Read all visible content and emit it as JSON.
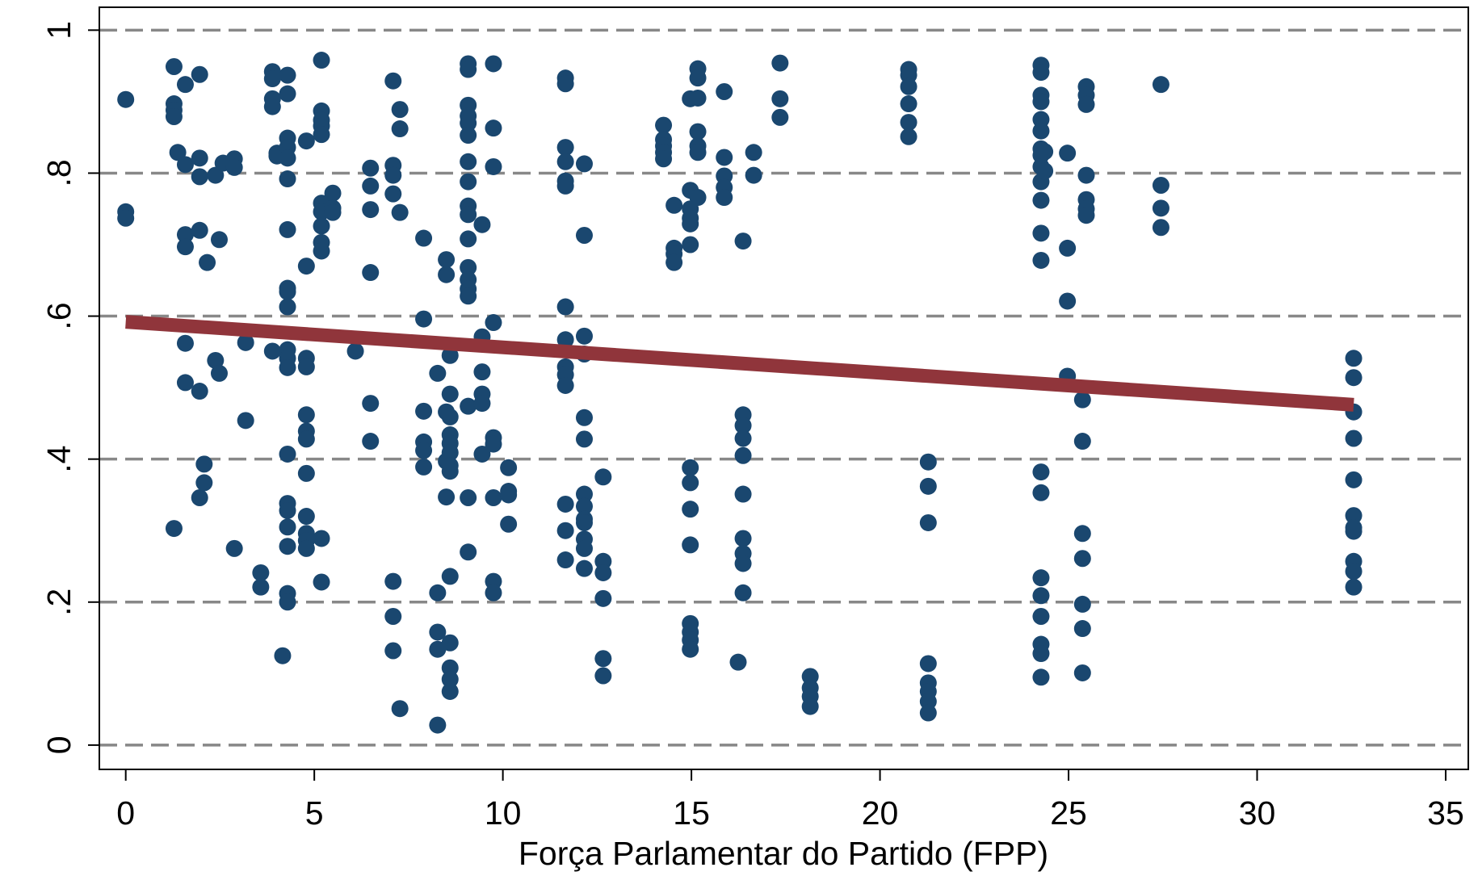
{
  "chart_data": {
    "type": "scatter",
    "xlabel": "Força Parlamentar do Partido (FPP)",
    "xlim": [
      -0.7,
      35.6
    ],
    "ylim": [
      -0.034,
      1.032
    ],
    "xticks": [
      0,
      5,
      10,
      15,
      20,
      25,
      30,
      35
    ],
    "yticks": [
      0,
      {
        "value": 0.2,
        "label": ".2"
      },
      {
        "value": 0.4,
        "label": ".4"
      },
      {
        "value": 0.6,
        "label": ".6"
      },
      {
        "value": 0.8,
        "label": ".8"
      },
      1
    ],
    "grid": true,
    "scatter": {
      "color": "#1a476f",
      "x": [
        0,
        0,
        0,
        1.28,
        1.28,
        1.28,
        1.28,
        1.28,
        1.38,
        1.58,
        1.58,
        1.58,
        1.58,
        1.58,
        1.58,
        1.96,
        1.96,
        1.96,
        1.96,
        1.96,
        1.96,
        2.08,
        2.08,
        2.16,
        2.38,
        2.38,
        2.48,
        2.48,
        2.58,
        2.88,
        2.88,
        2.88,
        3.18,
        3.18,
        3.58,
        3.58,
        3.89,
        3.89,
        3.89,
        3.89,
        3.89,
        4.01,
        4.01,
        4.29,
        4.29,
        4.29,
        4.29,
        4.29,
        4.29,
        4.29,
        4.29,
        4.29,
        4.29,
        4.29,
        4.29,
        4.29,
        4.29,
        4.29,
        4.29,
        4.29,
        4.29,
        4.29,
        4.29,
        4.16,
        4.79,
        4.79,
        4.79,
        4.79,
        4.79,
        4.79,
        4.79,
        4.79,
        4.79,
        4.79,
        4.79,
        4.79,
        5.19,
        5.19,
        5.19,
        5.19,
        5.19,
        5.19,
        5.19,
        5.19,
        5.19,
        5.19,
        5.19,
        5.19,
        5.49,
        5.49,
        5.49,
        6.09,
        6.49,
        6.49,
        6.49,
        6.49,
        6.49,
        6.49,
        7.09,
        7.09,
        7.09,
        7.09,
        7.09,
        7.09,
        7.09,
        7.27,
        7.27,
        7.27,
        7.27,
        7.9,
        7.9,
        7.9,
        7.9,
        7.9,
        7.9,
        8.27,
        8.27,
        8.27,
        8.27,
        8.27,
        8.5,
        8.5,
        8.5,
        8.5,
        8.5,
        8.6,
        8.6,
        8.6,
        8.6,
        8.6,
        8.6,
        8.6,
        8.6,
        8.6,
        8.6,
        8.6,
        8.6,
        8.6,
        9.08,
        9.08,
        9.08,
        9.08,
        9.08,
        9.08,
        9.08,
        9.08,
        9.08,
        9.08,
        9.08,
        9.08,
        9.08,
        9.08,
        9.08,
        9.08,
        9.08,
        9.08,
        9.45,
        9.45,
        9.45,
        9.45,
        9.45,
        9.45,
        9.75,
        9.75,
        9.75,
        9.75,
        9.75,
        9.75,
        9.75,
        9.75,
        9.75,
        10.15,
        10.15,
        10.15,
        10.15,
        11.66,
        11.66,
        11.66,
        11.66,
        11.66,
        11.66,
        11.66,
        11.66,
        11.66,
        11.66,
        11.66,
        11.66,
        11.66,
        11.66,
        12.16,
        12.16,
        12.16,
        12.16,
        12.16,
        12.16,
        12.16,
        12.16,
        12.16,
        12.16,
        12.16,
        12.16,
        12.16,
        12.66,
        12.66,
        12.66,
        12.66,
        12.66,
        12.66,
        14.26,
        14.26,
        14.26,
        14.26,
        14.26,
        14.54,
        14.54,
        14.54,
        14.54,
        14.97,
        14.97,
        14.97,
        14.97,
        14.97,
        14.97,
        14.97,
        14.97,
        14.97,
        14.97,
        14.97,
        14.97,
        14.97,
        14.97,
        15.17,
        15.17,
        15.17,
        15.17,
        15.17,
        15.17,
        15.17,
        15.87,
        15.87,
        15.87,
        15.87,
        15.87,
        16.37,
        16.37,
        16.37,
        16.37,
        16.37,
        16.37,
        16.37,
        16.37,
        16.37,
        16.37,
        16.24,
        16.65,
        16.65,
        17.35,
        17.35,
        17.35,
        18.15,
        18.15,
        18.15,
        18.15,
        20.76,
        20.76,
        20.76,
        20.76,
        20.76,
        20.76,
        21.28,
        21.28,
        21.28,
        21.28,
        21.28,
        21.28,
        21.28,
        21.28,
        24.27,
        24.27,
        24.27,
        24.27,
        24.27,
        24.27,
        24.27,
        24.27,
        24.27,
        24.27,
        24.27,
        24.27,
        24.27,
        24.27,
        24.27,
        24.27,
        24.27,
        24.27,
        24.27,
        24.27,
        24.27,
        24.37,
        24.37,
        24.97,
        24.97,
        24.97,
        24.97,
        25.37,
        25.37,
        25.37,
        25.37,
        25.37,
        25.37,
        25.37,
        25.47,
        25.47,
        25.47,
        25.47,
        25.47,
        25.47,
        25.47,
        27.45,
        27.45,
        27.45,
        27.45,
        32.56,
        32.56,
        32.56,
        32.56,
        32.56,
        32.56,
        32.56,
        32.56,
        32.56,
        32.56,
        32.56
      ],
      "values": [
        0.903,
        0.746,
        0.737,
        0.949,
        0.897,
        0.888,
        0.879,
        0.303,
        0.829,
        0.924,
        0.812,
        0.714,
        0.697,
        0.562,
        0.507,
        0.938,
        0.821,
        0.795,
        0.72,
        0.495,
        0.346,
        0.393,
        0.367,
        0.675,
        0.797,
        0.538,
        0.707,
        0.52,
        0.814,
        0.82,
        0.808,
        0.275,
        0.563,
        0.454,
        0.241,
        0.221,
        0.942,
        0.932,
        0.904,
        0.893,
        0.551,
        0.828,
        0.824,
        0.937,
        0.911,
        0.849,
        0.836,
        0.821,
        0.792,
        0.721,
        0.639,
        0.634,
        0.613,
        0.553,
        0.541,
        0.528,
        0.407,
        0.338,
        0.328,
        0.305,
        0.278,
        0.212,
        0.2,
        0.125,
        0.845,
        0.67,
        0.541,
        0.529,
        0.462,
        0.439,
        0.428,
        0.38,
        0.32,
        0.296,
        0.286,
        0.275,
        0.958,
        0.887,
        0.874,
        0.866,
        0.854,
        0.758,
        0.746,
        0.726,
        0.703,
        0.691,
        0.289,
        0.228,
        0.772,
        0.751,
        0.745,
        0.551,
        0.807,
        0.782,
        0.749,
        0.661,
        0.478,
        0.425,
        0.929,
        0.811,
        0.797,
        0.771,
        0.229,
        0.18,
        0.132,
        0.889,
        0.862,
        0.745,
        0.051,
        0.709,
        0.596,
        0.467,
        0.424,
        0.412,
        0.389,
        0.52,
        0.213,
        0.158,
        0.134,
        0.028,
        0.679,
        0.658,
        0.466,
        0.397,
        0.347,
        0.545,
        0.491,
        0.459,
        0.434,
        0.422,
        0.409,
        0.391,
        0.383,
        0.236,
        0.143,
        0.108,
        0.092,
        0.075,
        0.953,
        0.945,
        0.895,
        0.88,
        0.87,
        0.853,
        0.816,
        0.788,
        0.754,
        0.742,
        0.708,
        0.668,
        0.651,
        0.638,
        0.628,
        0.474,
        0.346,
        0.27,
        0.728,
        0.571,
        0.522,
        0.491,
        0.478,
        0.407,
        0.953,
        0.863,
        0.809,
        0.591,
        0.43,
        0.421,
        0.346,
        0.229,
        0.213,
        0.388,
        0.355,
        0.35,
        0.309,
        0.933,
        0.925,
        0.836,
        0.816,
        0.789,
        0.782,
        0.613,
        0.567,
        0.529,
        0.518,
        0.503,
        0.337,
        0.3,
        0.259,
        0.813,
        0.713,
        0.572,
        0.547,
        0.458,
        0.428,
        0.351,
        0.334,
        0.316,
        0.311,
        0.288,
        0.275,
        0.247,
        0.375,
        0.257,
        0.241,
        0.205,
        0.121,
        0.097,
        0.867,
        0.847,
        0.838,
        0.829,
        0.82,
        0.755,
        0.695,
        0.687,
        0.675,
        0.904,
        0.776,
        0.75,
        0.737,
        0.729,
        0.7,
        0.388,
        0.367,
        0.33,
        0.28,
        0.17,
        0.158,
        0.147,
        0.134,
        0.946,
        0.933,
        0.905,
        0.858,
        0.838,
        0.829,
        0.766,
        0.914,
        0.822,
        0.796,
        0.78,
        0.766,
        0.705,
        0.462,
        0.447,
        0.429,
        0.405,
        0.351,
        0.289,
        0.268,
        0.254,
        0.213,
        0.116,
        0.829,
        0.797,
        0.954,
        0.904,
        0.878,
        0.096,
        0.08,
        0.068,
        0.054,
        0.945,
        0.937,
        0.921,
        0.897,
        0.871,
        0.851,
        0.396,
        0.362,
        0.311,
        0.114,
        0.087,
        0.075,
        0.061,
        0.045,
        0.951,
        0.941,
        0.909,
        0.9,
        0.875,
        0.859,
        0.834,
        0.825,
        0.809,
        0.788,
        0.762,
        0.716,
        0.678,
        0.382,
        0.353,
        0.234,
        0.209,
        0.18,
        0.141,
        0.128,
        0.095,
        0.83,
        0.803,
        0.828,
        0.695,
        0.621,
        0.516,
        0.483,
        0.425,
        0.296,
        0.261,
        0.197,
        0.163,
        0.101,
        0.921,
        0.909,
        0.896,
        0.797,
        0.763,
        0.75,
        0.741,
        0.924,
        0.783,
        0.751,
        0.724,
        0.541,
        0.514,
        0.466,
        0.429,
        0.371,
        0.321,
        0.304,
        0.299,
        0.257,
        0.243,
        0.221
      ]
    },
    "fit": {
      "color": "#90353b",
      "x": [
        0,
        32.56
      ],
      "values": [
        0.592,
        0.476
      ]
    }
  }
}
